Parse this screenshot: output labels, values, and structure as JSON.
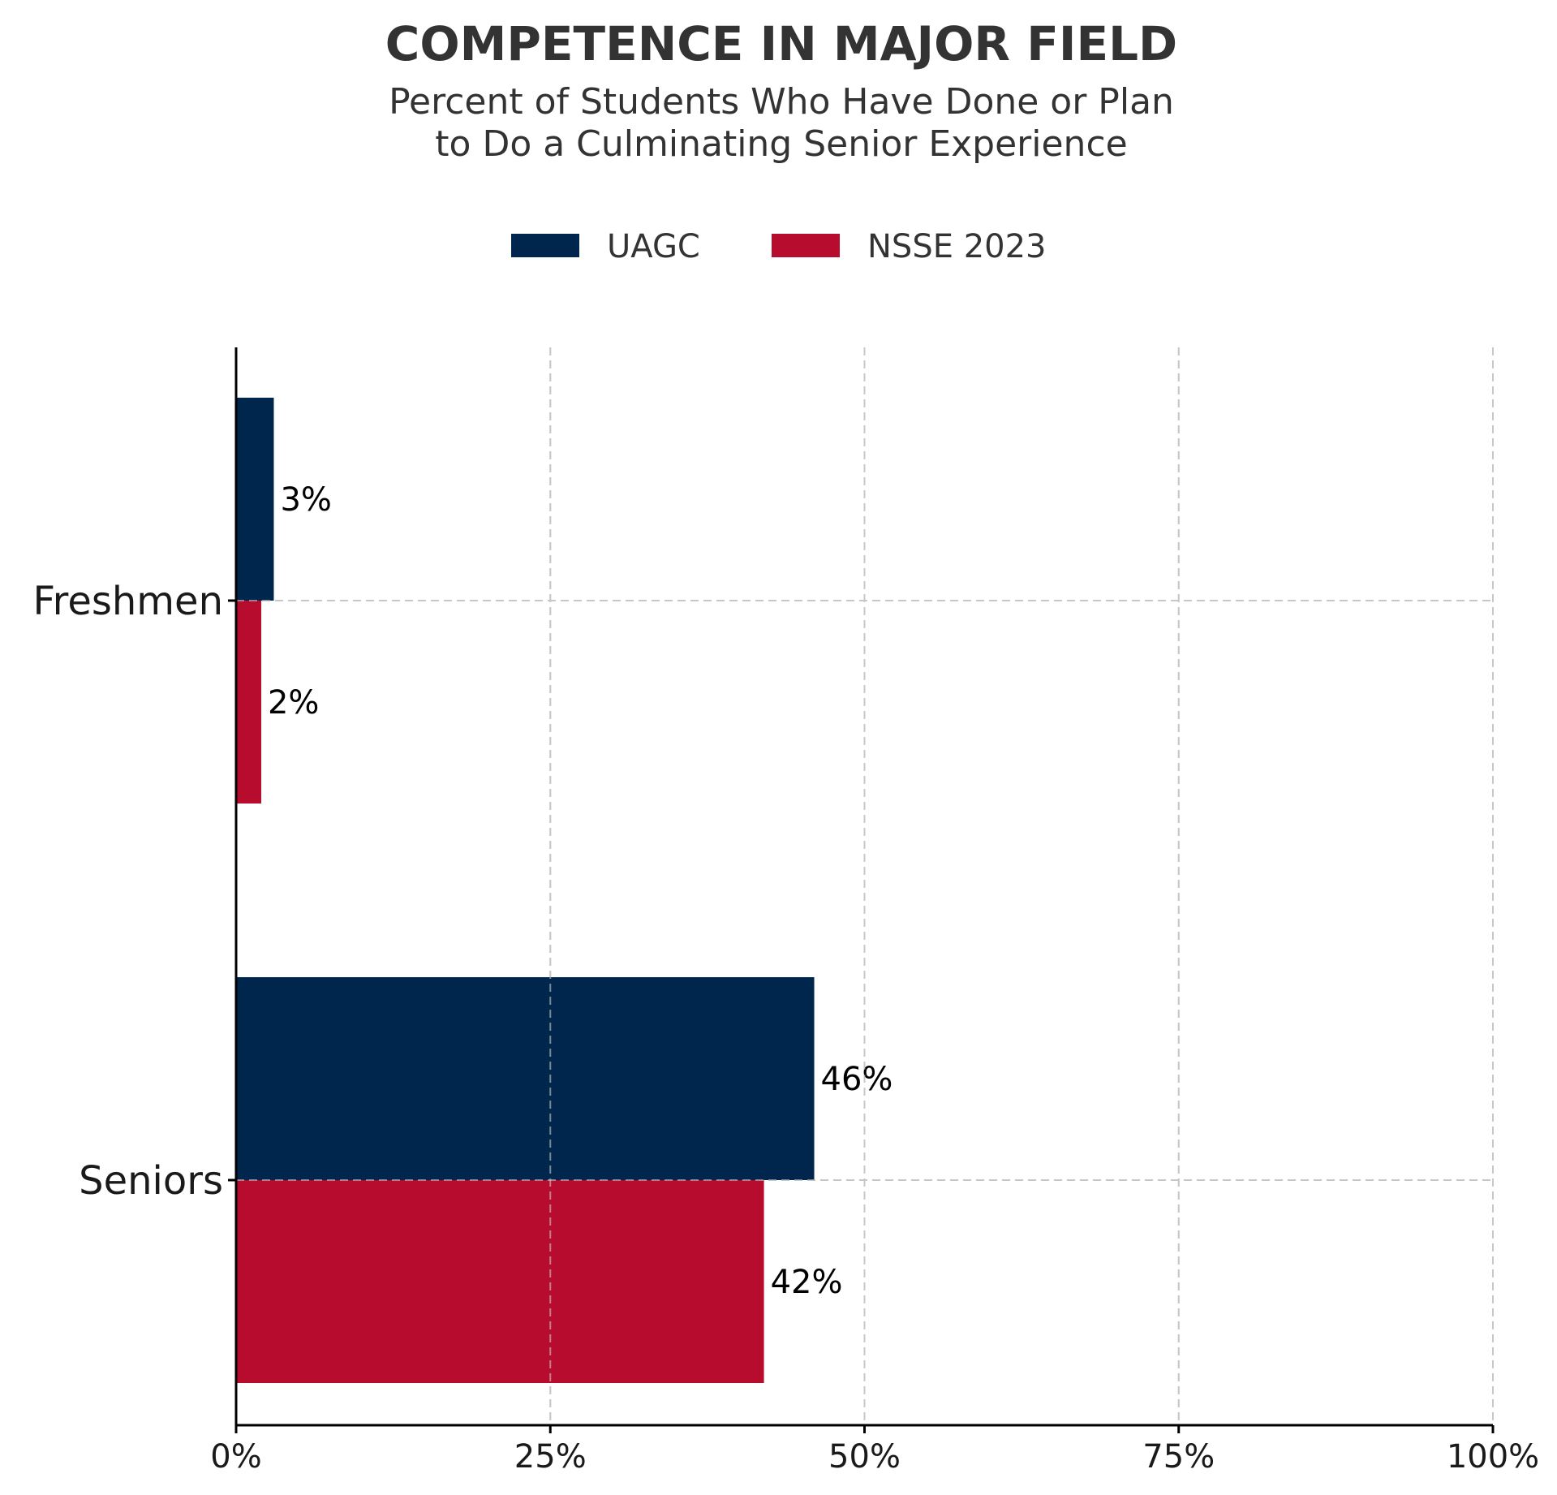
{
  "chart_data": {
    "type": "bar",
    "orientation": "horizontal",
    "title": "COMPETENCE IN MAJOR FIELD",
    "subtitle_lines": [
      "Percent of Students Who Have Done or Plan",
      "to Do a Culminating Senior Experience"
    ],
    "categories": [
      "Freshmen",
      "Seniors"
    ],
    "series": [
      {
        "name": "UAGC",
        "color": "#00264d",
        "values": [
          3,
          46
        ],
        "labels": [
          "3%",
          "46%"
        ]
      },
      {
        "name": "NSSE 2023",
        "color": "#b80c2f",
        "values": [
          2,
          42
        ],
        "labels": [
          "2%",
          "42%"
        ]
      }
    ],
    "xlim": [
      0,
      100
    ],
    "xticks": [
      0,
      25,
      50,
      75,
      100
    ],
    "xtick_labels": [
      "0%",
      "25%",
      "50%",
      "75%",
      "100%"
    ],
    "grid": true,
    "legend_position": "top-center"
  }
}
